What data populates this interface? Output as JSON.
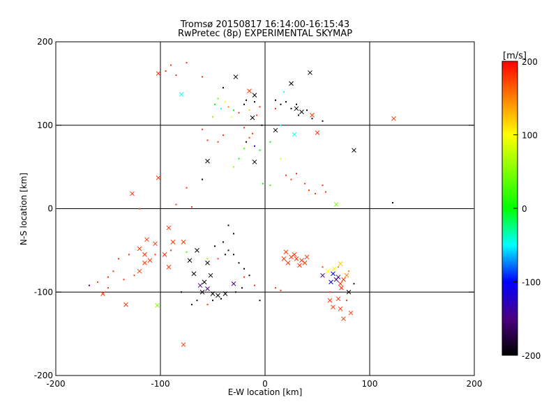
{
  "chart_data": {
    "type": "scatter",
    "title_line1": "Tromsø 20150817 16:14:00-16:15:43",
    "title_line2": "RwPretec (8p) EXPERIMENTAL SKYMAP",
    "xlabel": "E-W location [km]",
    "ylabel": "N-S location [km]",
    "xlim": [
      -200,
      200
    ],
    "ylim": [
      -200,
      200
    ],
    "x_ticks": [
      "-200",
      "-100",
      "0",
      "100",
      "200"
    ],
    "y_ticks": [
      "-200",
      "-100",
      "0",
      "100",
      "200"
    ],
    "grid": true,
    "colorbar": {
      "label": "[m/s]",
      "range": [
        -200,
        200
      ],
      "ticks": [
        "200",
        "100",
        "0",
        "-100",
        "-200"
      ]
    },
    "series": [
      {
        "marker": "cross",
        "points": [
          [
            -102,
            162,
            180
          ],
          [
            -80,
            137,
            -50
          ],
          [
            -28,
            158,
            -200
          ],
          [
            -15,
            141,
            180
          ],
          [
            -10,
            136,
            -200
          ],
          [
            25,
            150,
            -200
          ],
          [
            43,
            163,
            -200
          ],
          [
            30,
            120,
            -200
          ],
          [
            35,
            116,
            -200
          ],
          [
            45,
            112,
            180
          ],
          [
            50,
            91,
            180
          ],
          [
            -12,
            109,
            -200
          ],
          [
            10,
            94,
            -200
          ],
          [
            28,
            89,
            -50
          ],
          [
            85,
            70,
            -200
          ],
          [
            123,
            108,
            180
          ],
          [
            -55,
            57,
            -200
          ],
          [
            -10,
            56,
            -200
          ],
          [
            -127,
            18,
            180
          ],
          [
            -102,
            37,
            180
          ],
          [
            68,
            5,
            50
          ],
          [
            -92,
            -23,
            180
          ],
          [
            -88,
            -40,
            180
          ],
          [
            -113,
            -37,
            180
          ],
          [
            -120,
            -48,
            180
          ],
          [
            -115,
            -55,
            180
          ],
          [
            -105,
            -42,
            180
          ],
          [
            -78,
            -40,
            180
          ],
          [
            -96,
            -55,
            180
          ],
          [
            -110,
            -62,
            180
          ],
          [
            -120,
            -75,
            180
          ],
          [
            -115,
            -65,
            180
          ],
          [
            -92,
            -70,
            180
          ],
          [
            -65,
            -50,
            -200
          ],
          [
            -72,
            -62,
            -200
          ],
          [
            -55,
            -65,
            -200
          ],
          [
            -68,
            -78,
            -200
          ],
          [
            -52,
            -80,
            -200
          ],
          [
            -58,
            -88,
            -200
          ],
          [
            -62,
            -92,
            -150
          ],
          [
            -55,
            -96,
            -150
          ],
          [
            -60,
            -100,
            -200
          ],
          [
            -50,
            -102,
            -200
          ],
          [
            -45,
            -104,
            -200
          ],
          [
            -38,
            -102,
            -200
          ],
          [
            -30,
            -90,
            -150
          ],
          [
            -155,
            -102,
            180
          ],
          [
            -133,
            -115,
            180
          ],
          [
            -103,
            -116,
            50
          ],
          [
            -78,
            -163,
            180
          ],
          [
            20,
            -52,
            180
          ],
          [
            25,
            -58,
            180
          ],
          [
            30,
            -60,
            180
          ],
          [
            35,
            -62,
            180
          ],
          [
            22,
            -65,
            180
          ],
          [
            40,
            -58,
            180
          ],
          [
            28,
            -55,
            180
          ],
          [
            33,
            -68,
            180
          ],
          [
            18,
            -60,
            180
          ],
          [
            38,
            -65,
            180
          ],
          [
            60,
            -75,
            100
          ],
          [
            65,
            -78,
            -100
          ],
          [
            70,
            -82,
            -150
          ],
          [
            75,
            -85,
            180
          ],
          [
            72,
            -90,
            180
          ],
          [
            68,
            -85,
            -150
          ],
          [
            78,
            -80,
            150
          ],
          [
            73,
            -95,
            180
          ],
          [
            80,
            -100,
            -200
          ],
          [
            70,
            -108,
            180
          ],
          [
            62,
            -110,
            180
          ],
          [
            65,
            -118,
            180
          ],
          [
            72,
            -120,
            180
          ],
          [
            82,
            -125,
            180
          ],
          [
            75,
            -132,
            180
          ],
          [
            55,
            -80,
            -150
          ],
          [
            72,
            -66,
            120
          ],
          [
            66,
            -72,
            100
          ],
          [
            63,
            -88,
            -100
          ]
        ]
      },
      {
        "marker": "dot",
        "points": [
          [
            -90,
            172,
            180
          ],
          [
            -75,
            175,
            180
          ],
          [
            -85,
            160,
            180
          ],
          [
            -95,
            165,
            180
          ],
          [
            -60,
            158,
            180
          ],
          [
            -40,
            145,
            -200
          ],
          [
            -45,
            132,
            40
          ],
          [
            -38,
            128,
            90
          ],
          [
            -42,
            120,
            -50
          ],
          [
            -35,
            122,
            150
          ],
          [
            -30,
            118,
            0
          ],
          [
            -25,
            115,
            180
          ],
          [
            -20,
            125,
            -200
          ],
          [
            -18,
            130,
            -200
          ],
          [
            -15,
            118,
            120
          ],
          [
            -10,
            128,
            -200
          ],
          [
            -5,
            122,
            180
          ],
          [
            -8,
            112,
            180
          ],
          [
            -3,
            100,
            -200
          ],
          [
            -50,
            110,
            50
          ],
          [
            -48,
            125,
            0
          ],
          [
            -32,
            110,
            100
          ],
          [
            -20,
            97,
            180
          ],
          [
            -15,
            85,
            180
          ],
          [
            -12,
            90,
            180
          ],
          [
            -18,
            80,
            -200
          ],
          [
            -10,
            75,
            -100
          ],
          [
            -40,
            88,
            180
          ],
          [
            -20,
            72,
            30
          ],
          [
            -25,
            60,
            10
          ],
          [
            -30,
            50,
            60
          ],
          [
            -5,
            70,
            0
          ],
          [
            -45,
            80,
            180
          ],
          [
            -55,
            82,
            180
          ],
          [
            -60,
            95,
            180
          ],
          [
            10,
            130,
            -200
          ],
          [
            15,
            125,
            -200
          ],
          [
            20,
            128,
            -200
          ],
          [
            25,
            120,
            -200
          ],
          [
            30,
            125,
            -200
          ],
          [
            32,
            112,
            -200
          ],
          [
            40,
            118,
            -200
          ],
          [
            45,
            108,
            -200
          ],
          [
            55,
            105,
            -200
          ],
          [
            18,
            140,
            -50
          ],
          [
            10,
            120,
            180
          ],
          [
            15,
            100,
            -50
          ],
          [
            5,
            80,
            0
          ],
          [
            15,
            60,
            80
          ],
          [
            20,
            40,
            180
          ],
          [
            25,
            35,
            180
          ],
          [
            30,
            42,
            180
          ],
          [
            38,
            30,
            180
          ],
          [
            42,
            22,
            180
          ],
          [
            48,
            18,
            180
          ],
          [
            55,
            28,
            180
          ],
          [
            58,
            20,
            180
          ],
          [
            -2,
            30,
            0
          ],
          [
            5,
            28,
            20
          ],
          [
            -60,
            35,
            -200
          ],
          [
            -75,
            25,
            180
          ],
          [
            -85,
            5,
            180
          ],
          [
            -120,
            0,
            180
          ],
          [
            -70,
            2,
            180
          ],
          [
            122,
            7,
            -200
          ],
          [
            -35,
            -20,
            -200
          ],
          [
            -30,
            -30,
            -200
          ],
          [
            -40,
            -40,
            -200
          ],
          [
            -35,
            -50,
            -200
          ],
          [
            -38,
            -55,
            -200
          ],
          [
            -45,
            -60,
            180
          ],
          [
            -30,
            -55,
            -200
          ],
          [
            -48,
            -45,
            -200
          ],
          [
            -25,
            -65,
            -200
          ],
          [
            -20,
            -72,
            -200
          ],
          [
            -15,
            -80,
            -200
          ],
          [
            -22,
            -95,
            -200
          ],
          [
            -28,
            -100,
            -200
          ],
          [
            -10,
            -92,
            180
          ],
          [
            -20,
            -82,
            180
          ],
          [
            -130,
            -55,
            180
          ],
          [
            -140,
            -60,
            180
          ],
          [
            -145,
            -75,
            180
          ],
          [
            -150,
            -82,
            180
          ],
          [
            -160,
            -88,
            180
          ],
          [
            -168,
            -92,
            -150
          ],
          [
            -125,
            -80,
            180
          ],
          [
            -135,
            -85,
            180
          ],
          [
            -150,
            -95,
            180
          ],
          [
            -80,
            -100,
            -200
          ],
          [
            -70,
            -115,
            -200
          ],
          [
            -65,
            -110,
            -200
          ],
          [
            -55,
            -115,
            180
          ],
          [
            -50,
            -110,
            -200
          ],
          [
            -42,
            -108,
            -200
          ],
          [
            -5,
            -110,
            -200
          ],
          [
            10,
            -95,
            180
          ],
          [
            15,
            -98,
            180
          ],
          [
            55,
            -70,
            180
          ],
          [
            70,
            -70,
            150
          ],
          [
            80,
            -75,
            150
          ],
          [
            62,
            -100,
            180
          ],
          [
            78,
            -110,
            180
          ],
          [
            85,
            -90,
            -200
          ],
          [
            -55,
            -60,
            50
          ],
          [
            -75,
            -52,
            20
          ],
          [
            -105,
            -55,
            180
          ],
          [
            -90,
            -50,
            180
          ]
        ]
      }
    ]
  }
}
